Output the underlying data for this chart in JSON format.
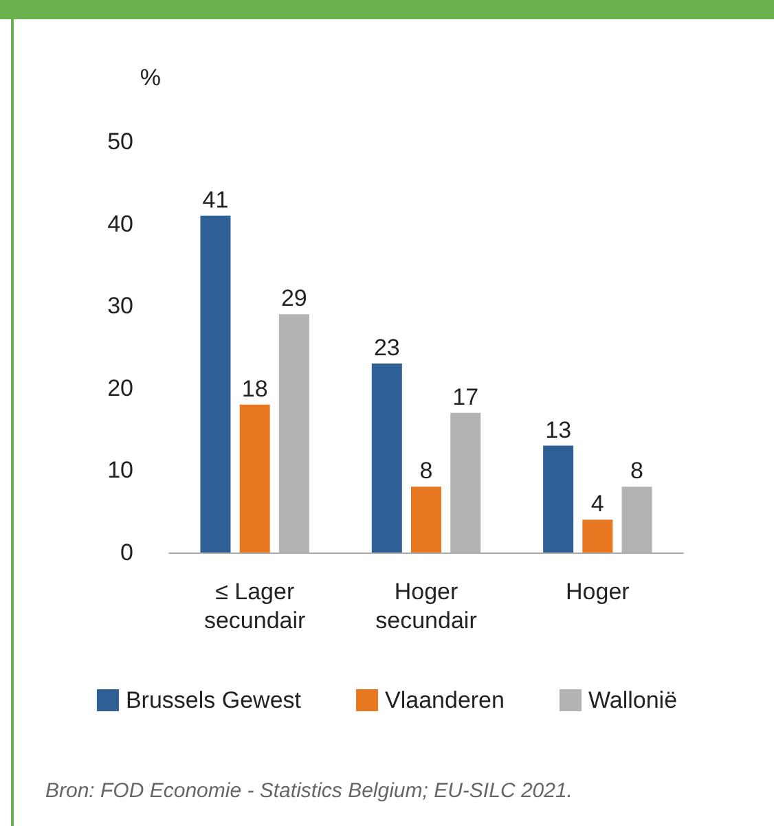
{
  "chart_data": {
    "type": "bar",
    "ylabel": "%",
    "categories": [
      "≤ Lager\nsecundair",
      "Hoger\nsecundair",
      "Hoger"
    ],
    "series": [
      {
        "name": "Brussels Gewest",
        "color": "#2e6096",
        "values": [
          41,
          23,
          13
        ]
      },
      {
        "name": "Vlaanderen",
        "color": "#e87722",
        "values": [
          18,
          8,
          4
        ]
      },
      {
        "name": "Wallonië",
        "color": "#b3b3b3",
        "values": [
          29,
          17,
          8
        ]
      }
    ],
    "ylim": [
      0,
      50
    ],
    "yticks": [
      0,
      10,
      20,
      30,
      40,
      50
    ],
    "grid": false,
    "legend": "bottom",
    "data_labels": true,
    "annotations": [
      "Bron: FOD Economie - Statistics Belgium; EU-SILC 2021."
    ]
  }
}
